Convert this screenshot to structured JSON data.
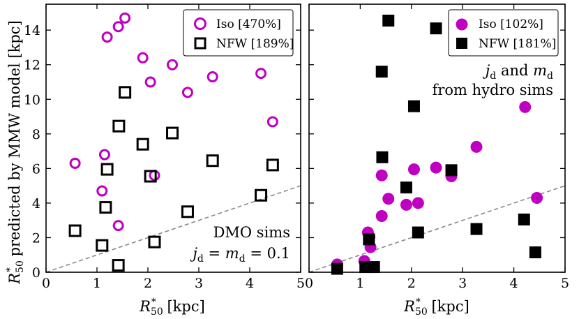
{
  "figure": {
    "ylabel_main": "R",
    "ylabel_sup": "*",
    "ylabel_sub": "50",
    "ylabel_rest": " predicted by MMW model [kpc]"
  },
  "chart_data": [
    {
      "type": "scatter",
      "panel": "left",
      "xlabel_main": "R",
      "xlabel_sup": "*",
      "xlabel_sub": "50",
      "xlabel_rest": " [kpc]",
      "xlim": [
        0,
        5
      ],
      "ylim": [
        0,
        15.5
      ],
      "xticks": [
        0,
        1,
        2,
        3,
        4,
        5
      ],
      "yticks": [
        0,
        2,
        4,
        6,
        8,
        10,
        12,
        14
      ],
      "legend_position": "top-right",
      "reference_line": {
        "style": "dashed",
        "color": "#888888",
        "x": [
          0,
          5
        ],
        "y": [
          0,
          5
        ]
      },
      "annotation_lines": [
        "DMO sims",
        "j_d = m_d = 0.1"
      ],
      "annotation_title": "DMO sims",
      "annotation_eq": {
        "j": "j",
        "j_sub": "d",
        "equals1": " = ",
        "m": "m",
        "m_sub": "d",
        "equals2": " = 0.1"
      },
      "series": [
        {
          "name": "Iso [470%]",
          "marker": "open-circle",
          "color": "#c000c0",
          "x": [
            0.57,
            1.1,
            1.15,
            1.2,
            1.42,
            1.42,
            1.55,
            1.9,
            2.05,
            2.13,
            2.48,
            2.78,
            3.27,
            4.22,
            4.45
          ],
          "y": [
            6.3,
            4.7,
            6.8,
            13.6,
            2.7,
            14.2,
            14.7,
            12.4,
            11.0,
            5.6,
            12.0,
            10.4,
            11.3,
            11.5,
            8.7
          ]
        },
        {
          "name": "NFW [189%]",
          "marker": "open-square",
          "color": "#000000",
          "x": [
            0.57,
            1.1,
            1.17,
            1.2,
            1.42,
            1.43,
            1.55,
            1.9,
            2.05,
            2.13,
            2.48,
            2.78,
            3.27,
            4.22,
            4.45
          ],
          "y": [
            2.4,
            1.55,
            3.75,
            5.95,
            0.4,
            8.45,
            10.4,
            7.4,
            5.55,
            1.75,
            8.05,
            3.5,
            6.45,
            4.45,
            6.2
          ]
        }
      ]
    },
    {
      "type": "scatter",
      "panel": "right",
      "xlabel_main": "R",
      "xlabel_sup": "*",
      "xlabel_sub": "50",
      "xlabel_rest": " [kpc]",
      "xlim": [
        0,
        5
      ],
      "ylim": [
        0,
        15.5
      ],
      "xticks": [
        0,
        1,
        2,
        3,
        4,
        5
      ],
      "yticks": [
        0,
        2,
        4,
        6,
        8,
        10,
        12,
        14
      ],
      "legend_position": "top-right",
      "reference_line": {
        "style": "dashed",
        "color": "#888888",
        "x": [
          0,
          5
        ],
        "y": [
          0,
          5
        ]
      },
      "annotation_lines": [
        "j_d and m_d",
        "from hydro sims"
      ],
      "annotation_eq": {
        "j": "j",
        "j_sub": "d",
        "and": " and ",
        "m": "m",
        "m_sub": "d"
      },
      "annotation_second": "from hydro sims",
      "series": [
        {
          "name": "Iso [102%]",
          "marker": "filled-circle",
          "color": "#c000c0",
          "x": [
            0.55,
            1.08,
            1.15,
            1.18,
            1.2,
            1.42,
            1.42,
            1.55,
            1.9,
            2.05,
            2.13,
            2.48,
            2.78,
            3.27,
            4.22,
            4.45
          ],
          "y": [
            0.45,
            0.65,
            2.3,
            2.05,
            1.45,
            3.25,
            5.6,
            4.25,
            3.9,
            5.95,
            4.0,
            6.05,
            5.55,
            7.25,
            9.55,
            4.3
          ]
        },
        {
          "name": "NFW [181%]",
          "marker": "filled-square",
          "color": "#000000",
          "x": [
            0.55,
            1.1,
            1.17,
            1.27,
            1.42,
            1.43,
            1.55,
            1.9,
            2.05,
            2.13,
            2.48,
            2.78,
            3.27,
            4.2,
            4.42
          ],
          "y": [
            0.2,
            0.3,
            1.9,
            0.3,
            11.6,
            6.65,
            14.55,
            4.9,
            9.6,
            2.3,
            14.1,
            5.9,
            2.5,
            3.05,
            1.15
          ]
        }
      ]
    }
  ]
}
